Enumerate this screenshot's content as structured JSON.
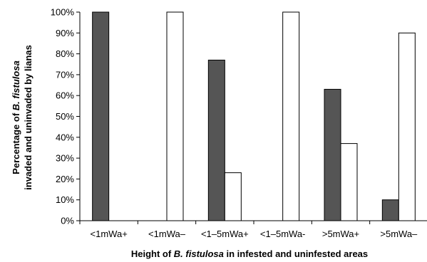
{
  "chart_data": {
    "type": "bar",
    "categories": [
      "<1mWa+",
      "<1mWa–",
      "<1–5mWa+",
      "<1–5mWa-",
      ">5mWa+",
      ">5mWa–"
    ],
    "series": [
      {
        "values": [
          100,
          0,
          77,
          0,
          63,
          10
        ],
        "color": "#555555"
      },
      {
        "values": [
          0,
          100,
          23,
          100,
          37,
          90
        ],
        "color": "#ffffff"
      }
    ],
    "ylim": [
      0,
      100
    ],
    "yticks": [
      "0%",
      "10%",
      "20%",
      "30%",
      "40%",
      "50%",
      "60%",
      "70%",
      "80%",
      "90%",
      "100%"
    ],
    "xlabel": {
      "before": "Height of ",
      "italic": "B. fistulosa",
      "after": " in infested and uninfested areas"
    },
    "ylabel": {
      "line1_before": "Percentage of ",
      "line1_italic": "B. fistulosa",
      "line2": "invaded and uninvaded by lianas"
    },
    "grid": false,
    "legend": "none"
  }
}
